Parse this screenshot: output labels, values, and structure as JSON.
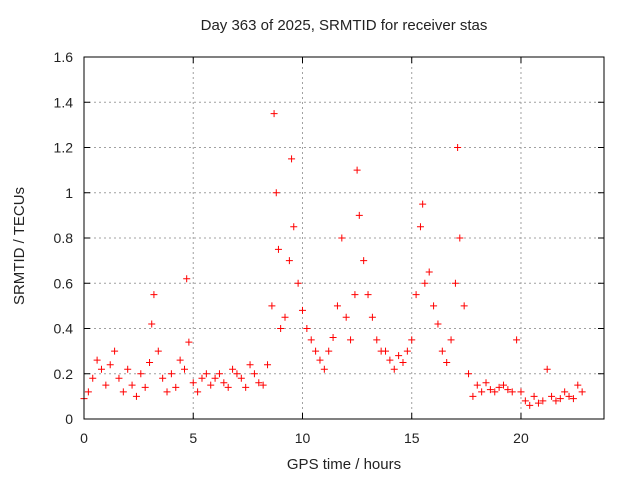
{
  "chart_data": {
    "type": "scatter",
    "title": "Day 363 of 2025, SRMTID for receiver stas",
    "xlabel": "GPS time / hours",
    "ylabel": "SRMTID / TECUs",
    "xlim": [
      0,
      23.8
    ],
    "ylim": [
      0,
      1.6
    ],
    "xticks": [
      0,
      5,
      10,
      15,
      20
    ],
    "xtick_labels": [
      "0",
      "5",
      "10",
      "15",
      "20"
    ],
    "yticks": [
      0,
      0.2,
      0.4,
      0.6,
      0.8,
      1.0,
      1.2,
      1.4,
      1.6
    ],
    "ytick_labels": [
      "0",
      "0.2",
      "0.4",
      "0.6",
      "0.8",
      "1",
      "1.2",
      "1.4",
      "1.6"
    ],
    "grid": true,
    "marker": "+",
    "color": "#ff0000",
    "series": [
      {
        "name": "SRMTID",
        "x": [
          0.0,
          0.2,
          0.4,
          0.6,
          0.8,
          1.0,
          1.2,
          1.4,
          1.6,
          1.8,
          2.0,
          2.2,
          2.4,
          2.6,
          2.8,
          3.0,
          3.1,
          3.2,
          3.4,
          3.6,
          3.8,
          4.0,
          4.2,
          4.4,
          4.6,
          4.7,
          4.8,
          5.0,
          5.2,
          5.4,
          5.6,
          5.8,
          6.0,
          6.2,
          6.4,
          6.6,
          6.8,
          7.0,
          7.2,
          7.4,
          7.6,
          7.8,
          8.0,
          8.2,
          8.4,
          8.6,
          8.7,
          8.8,
          8.9,
          9.0,
          9.2,
          9.4,
          9.5,
          9.6,
          9.8,
          10.0,
          10.2,
          10.4,
          10.6,
          10.8,
          11.0,
          11.2,
          11.4,
          11.6,
          11.8,
          12.0,
          12.2,
          12.4,
          12.5,
          12.6,
          12.8,
          13.0,
          13.2,
          13.4,
          13.6,
          13.8,
          14.0,
          14.2,
          14.4,
          14.6,
          14.8,
          15.0,
          15.2,
          15.4,
          15.5,
          15.6,
          15.8,
          16.0,
          16.2,
          16.4,
          16.6,
          16.8,
          17.0,
          17.1,
          17.2,
          17.4,
          17.6,
          17.8,
          18.0,
          18.2,
          18.4,
          18.6,
          18.8,
          19.0,
          19.2,
          19.4,
          19.6,
          19.8,
          20.0,
          20.2,
          20.4,
          20.6,
          20.8,
          21.0,
          21.2,
          21.4,
          21.6,
          21.8,
          22.0,
          22.2,
          22.4,
          22.6,
          22.8
        ],
        "y": [
          0.09,
          0.12,
          0.18,
          0.26,
          0.22,
          0.15,
          0.24,
          0.3,
          0.18,
          0.12,
          0.22,
          0.15,
          0.1,
          0.2,
          0.14,
          0.25,
          0.42,
          0.55,
          0.3,
          0.18,
          0.12,
          0.2,
          0.14,
          0.26,
          0.22,
          0.62,
          0.34,
          0.16,
          0.12,
          0.18,
          0.2,
          0.15,
          0.18,
          0.2,
          0.16,
          0.14,
          0.22,
          0.2,
          0.18,
          0.14,
          0.24,
          0.2,
          0.16,
          0.15,
          0.24,
          0.5,
          1.35,
          1.0,
          0.75,
          0.4,
          0.45,
          0.7,
          1.15,
          0.85,
          0.6,
          0.48,
          0.4,
          0.35,
          0.3,
          0.26,
          0.22,
          0.3,
          0.36,
          0.5,
          0.8,
          0.45,
          0.35,
          0.55,
          1.1,
          0.9,
          0.7,
          0.55,
          0.45,
          0.35,
          0.3,
          0.3,
          0.26,
          0.22,
          0.28,
          0.25,
          0.3,
          0.35,
          0.55,
          0.85,
          0.95,
          0.6,
          0.65,
          0.5,
          0.42,
          0.3,
          0.25,
          0.35,
          0.6,
          1.2,
          0.8,
          0.5,
          0.2,
          0.1,
          0.15,
          0.12,
          0.16,
          0.13,
          0.12,
          0.14,
          0.15,
          0.13,
          0.12,
          0.35,
          0.12,
          0.08,
          0.06,
          0.1,
          0.07,
          0.08,
          0.22,
          0.1,
          0.08,
          0.09,
          0.12,
          0.1,
          0.09,
          0.15,
          0.12
        ]
      }
    ]
  }
}
